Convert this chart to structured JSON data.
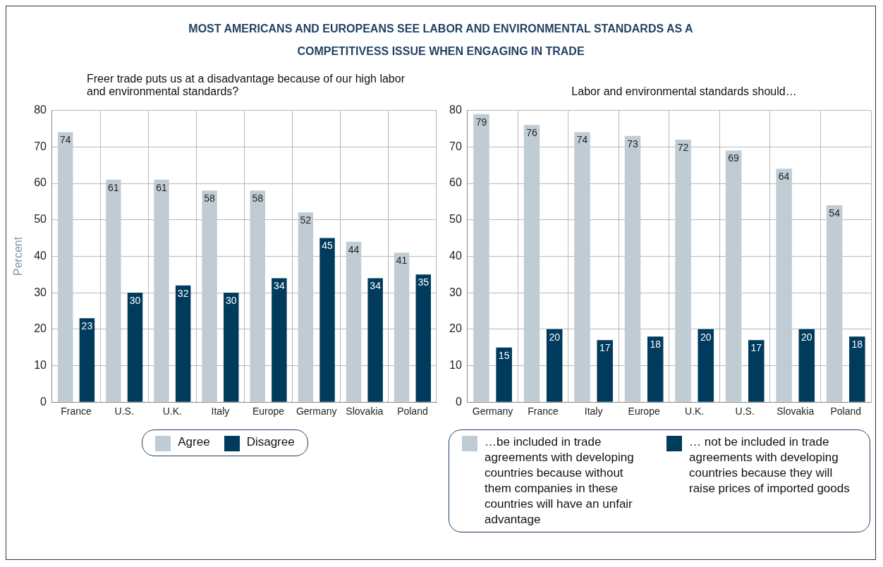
{
  "chart_data": [
    {
      "type": "bar",
      "title": "MOST AMERICANS AND EUROPEANS SEE LABOR AND ENVIRONMENTAL STANDARDS AS A COMPETITIVESS ISSUE WHEN ENGAGING IN TRADE",
      "subtitle": "Freer trade puts us at a disadvantage because of our high labor and environmental standards?",
      "ylabel": "Percent",
      "categories": [
        "France",
        "U.S.",
        "U.K.",
        "Italy",
        "Europe",
        "Germany",
        "Slovakia",
        "Poland"
      ],
      "series": [
        {
          "name": "Agree",
          "color": "#c0ccd4",
          "values": [
            74,
            61,
            61,
            58,
            58,
            52,
            44,
            41
          ]
        },
        {
          "name": "Disagree",
          "color": "#003a5c",
          "values": [
            23,
            30,
            32,
            30,
            34,
            45,
            34,
            35
          ]
        }
      ],
      "ylim": [
        0,
        80
      ],
      "yticks": [
        0,
        10,
        20,
        30,
        40,
        50,
        60,
        70,
        80
      ],
      "grid": true,
      "legend": "bottom",
      "data_labels": true
    },
    {
      "type": "bar",
      "subtitle": "Labor and environmental standards should…",
      "categories": [
        "Germany",
        "France",
        "Italy",
        "Europe",
        "U.K.",
        "U.S.",
        "Slovakia",
        "Poland"
      ],
      "series": [
        {
          "name": "…be included in trade agreements with developing countries because without them companies in these countries will have an unfair advantage",
          "color": "#c0ccd4",
          "values": [
            79,
            76,
            74,
            73,
            72,
            69,
            64,
            54
          ]
        },
        {
          "name": "… not be included in trade agreements with developing countries because they will raise prices of imported goods",
          "color": "#003a5c",
          "values": [
            15,
            20,
            17,
            18,
            20,
            17,
            20,
            18
          ]
        }
      ],
      "ylim": [
        0,
        80
      ],
      "yticks": [
        0,
        10,
        20,
        30,
        40,
        50,
        60,
        70,
        80
      ],
      "grid": true,
      "legend": "bottom",
      "data_labels": true
    }
  ]
}
